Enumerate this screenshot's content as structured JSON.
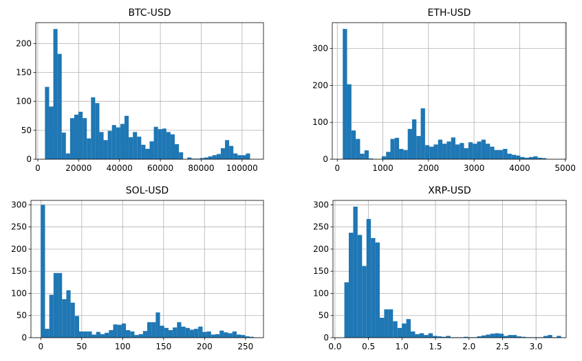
{
  "chart_data": [
    {
      "type": "bar",
      "title": "BTC-USD",
      "xlabel": "",
      "ylabel": "",
      "grid": true,
      "xlim": [
        -1000,
        110500
      ],
      "ylim": [
        0,
        236
      ],
      "xticks": [
        0,
        20000,
        40000,
        60000,
        80000,
        100000
      ],
      "xtick_labels": [
        "0",
        "20000",
        "40000",
        "60000",
        "80000",
        "100000"
      ],
      "yticks": [
        0,
        50,
        100,
        150,
        200
      ],
      "ytick_labels": [
        "0",
        "50",
        "100",
        "150",
        "200"
      ],
      "bin_start": 3500,
      "bin_width": 2050,
      "values": [
        125,
        91,
        225,
        182,
        46,
        10,
        71,
        77,
        82,
        71,
        36,
        107,
        97,
        47,
        33,
        49,
        59,
        55,
        61,
        75,
        38,
        47,
        39,
        25,
        18,
        31,
        56,
        52,
        53,
        47,
        43,
        26,
        12,
        0,
        3,
        1,
        1,
        2,
        3,
        5,
        7,
        9,
        19,
        33,
        23,
        10,
        7,
        7,
        10
      ]
    },
    {
      "type": "bar",
      "title": "ETH-USD",
      "xlabel": "",
      "ylabel": "",
      "grid": true,
      "xlim": [
        -110,
        5020
      ],
      "ylim": [
        0,
        370
      ],
      "xticks": [
        0,
        1000,
        2000,
        3000,
        4000,
        5000
      ],
      "xtick_labels": [
        "0",
        "1000",
        "2000",
        "3000",
        "4000",
        "5000"
      ],
      "yticks": [
        0,
        100,
        200,
        300
      ],
      "ytick_labels": [
        "0",
        "100",
        "200",
        "300"
      ],
      "bin_start": 120,
      "bin_width": 95,
      "values": [
        353,
        203,
        78,
        55,
        15,
        24,
        2,
        0,
        0,
        8,
        20,
        55,
        58,
        28,
        25,
        82,
        108,
        63,
        138,
        38,
        34,
        40,
        53,
        42,
        48,
        59,
        40,
        44,
        30,
        46,
        42,
        48,
        53,
        42,
        34,
        25,
        25,
        28,
        15,
        12,
        10,
        6,
        4,
        6,
        8,
        4,
        3
      ]
    },
    {
      "type": "bar",
      "title": "SOL-USD",
      "xlabel": "",
      "ylabel": "",
      "grid": true,
      "xlim": [
        -12,
        272
      ],
      "ylim": [
        0,
        310
      ],
      "xticks": [
        0,
        50,
        100,
        150,
        200,
        250
      ],
      "xtick_labels": [
        "0",
        "50",
        "100",
        "150",
        "200",
        "250"
      ],
      "yticks": [
        0,
        50,
        100,
        150,
        200,
        250,
        300
      ],
      "ytick_labels": [
        "0",
        "50",
        "100",
        "150",
        "200",
        "250",
        "300"
      ],
      "bin_start": 0,
      "bin_width": 5.2,
      "values": [
        300,
        20,
        97,
        146,
        146,
        87,
        107,
        79,
        49,
        14,
        14,
        14,
        7,
        13,
        8,
        11,
        17,
        30,
        29,
        32,
        17,
        14,
        6,
        8,
        15,
        35,
        35,
        57,
        27,
        22,
        17,
        23,
        35,
        25,
        22,
        18,
        20,
        25,
        13,
        14,
        7,
        8,
        16,
        12,
        10,
        14,
        7,
        6,
        3,
        2
      ]
    },
    {
      "type": "bar",
      "title": "XRP-USD",
      "xlabel": "",
      "ylabel": "",
      "grid": true,
      "xlim": [
        -0.03,
        3.45
      ],
      "ylim": [
        0,
        310
      ],
      "xticks": [
        0.0,
        0.5,
        1.0,
        1.5,
        2.0,
        2.5,
        3.0
      ],
      "xtick_labels": [
        "0.0",
        "0.5",
        "1.0",
        "1.5",
        "2.0",
        "2.5",
        "3.0"
      ],
      "yticks": [
        0,
        50,
        100,
        150,
        200,
        250,
        300
      ],
      "ytick_labels": [
        "0",
        "50",
        "100",
        "150",
        "200",
        "250",
        "300"
      ],
      "bin_start": 0.14,
      "bin_width": 0.066,
      "values": [
        125,
        237,
        296,
        232,
        162,
        268,
        225,
        215,
        45,
        64,
        64,
        37,
        22,
        32,
        42,
        14,
        8,
        10,
        6,
        10,
        4,
        3,
        2,
        4,
        1,
        1,
        1,
        2,
        1,
        1,
        3,
        5,
        7,
        9,
        10,
        9,
        4,
        6,
        6,
        3,
        2,
        1,
        1,
        1,
        1,
        4,
        6,
        1,
        4
      ]
    }
  ],
  "colors": {
    "bar": "#1f77b4",
    "grid": "#b0b0b0",
    "axes": "#000000",
    "background": "#ffffff"
  }
}
